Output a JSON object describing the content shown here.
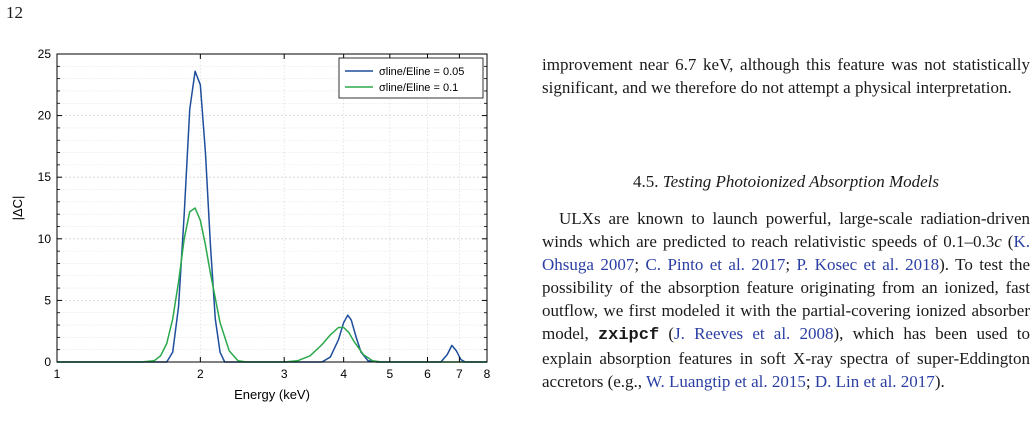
{
  "page": {
    "number": "12"
  },
  "figure": {
    "chart_data": {
      "type": "line",
      "xlabel": "Energy (keV)",
      "ylabel": "|ΔC|",
      "xscale": "log",
      "xlim": [
        1,
        8
      ],
      "ylim": [
        0,
        25
      ],
      "xticks": [
        "1",
        "2",
        "3",
        "4",
        "5",
        "6",
        "7",
        "8"
      ],
      "yticks": [
        "0",
        "5",
        "10",
        "15",
        "20",
        "25"
      ],
      "grid": true,
      "legend_position": "top-right",
      "series": [
        {
          "name": "σline/Eline = 0.05",
          "color": "#1f4e9c",
          "x": [
            1.0,
            1.6,
            1.7,
            1.75,
            1.8,
            1.85,
            1.9,
            1.95,
            2.0,
            2.05,
            2.1,
            2.15,
            2.2,
            2.25,
            2.35,
            3.0,
            3.6,
            3.75,
            3.9,
            4.0,
            4.08,
            4.15,
            4.25,
            4.35,
            4.5,
            4.7,
            6.0,
            6.4,
            6.6,
            6.75,
            6.9,
            7.05,
            7.2,
            8.0
          ],
          "y": [
            0,
            0,
            0,
            0.8,
            4.5,
            12,
            20.5,
            23.6,
            22.5,
            17,
            9.5,
            3.5,
            0.8,
            0,
            0,
            0,
            0,
            0.4,
            1.8,
            3.2,
            3.8,
            3.4,
            2.0,
            0.8,
            0.1,
            0,
            0,
            0,
            0.6,
            1.35,
            0.9,
            0.2,
            0,
            0
          ]
        },
        {
          "name": "σline/Eline = 0.1",
          "color": "#2aa84a",
          "x": [
            1.0,
            1.5,
            1.6,
            1.65,
            1.7,
            1.75,
            1.8,
            1.85,
            1.9,
            1.95,
            2.0,
            2.05,
            2.1,
            2.2,
            2.3,
            2.4,
            2.5,
            3.0,
            3.2,
            3.4,
            3.6,
            3.75,
            3.9,
            4.0,
            4.1,
            4.2,
            4.4,
            4.6,
            4.8,
            8.0
          ],
          "y": [
            0,
            0,
            0.1,
            0.5,
            1.5,
            3.5,
            6.5,
            10,
            12.2,
            12.5,
            11.5,
            9.5,
            7.2,
            3.2,
            0.9,
            0.1,
            0,
            0,
            0.1,
            0.5,
            1.4,
            2.2,
            2.8,
            2.8,
            2.4,
            1.7,
            0.6,
            0.1,
            0,
            0
          ]
        }
      ]
    }
  },
  "text": {
    "para1": "improvement near 6.7 keV, although this feature was not statistically significant, and we therefore do not attempt a physical interpretation.",
    "section_number": "4.5.",
    "section_title": "Testing Photoionized Absorption Models",
    "para2_a": "ULXs are known to launch powerful, large-scale radiation-driven winds which are predicted to reach relativistic speeds of 0.1–0.3",
    "para2_c": "c",
    "para2_b": " (",
    "cite1": "K. Ohsuga 2007",
    "sep1": "; ",
    "cite2": "C. Pinto et al. 2017",
    "sep2": "; ",
    "cite3": "P. Kosec et al. 2018",
    "para2_d": "). To test the possibility of the absorption feature originating from an ionized, fast outflow, we first modeled it with the partial-covering ionized absorber model, ",
    "model": "zxipcf",
    "para2_e": " (",
    "cite4": "J. Reeves et al. 2008",
    "para2_f": "), which has been used to explain absorption features in soft X-ray spectra of super-Eddington accretors (e.g., ",
    "cite5": "W. Luangtip et al. 2015",
    "sep3": "; ",
    "cite6": "D. Lin et al. 2017",
    "para2_g": ")."
  }
}
